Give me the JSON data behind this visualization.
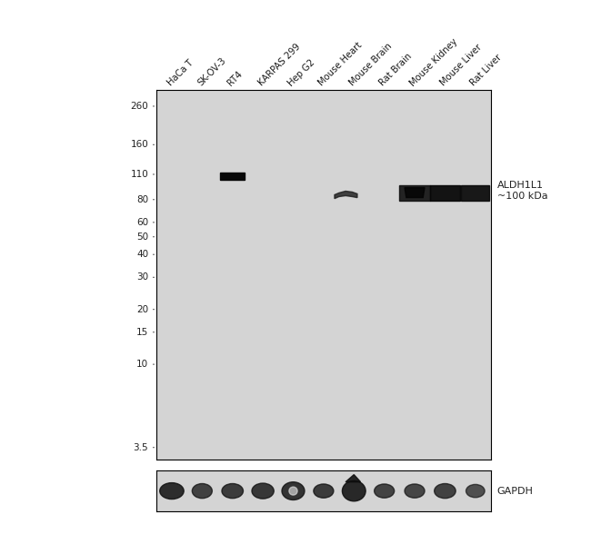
{
  "figure_bg": "#ffffff",
  "panel_bg": "#d4d4d4",
  "panel_border": "#000000",
  "ladder_labels": [
    "260",
    "160",
    "110",
    "80",
    "60",
    "50",
    "40",
    "30",
    "20",
    "15",
    "10",
    "3.5"
  ],
  "ladder_values": [
    260,
    160,
    110,
    80,
    60,
    50,
    40,
    30,
    20,
    15,
    10,
    3.5
  ],
  "ymin": 3.0,
  "ymax": 320,
  "lane_labels": [
    "HaCa T",
    "SK-OV-3",
    "RT4",
    "KARPAS 299",
    "Hep G2",
    "Mouse Heart",
    "Mouse Brain",
    "Rat Brain",
    "Mouse Kidney",
    "Mouse Liver",
    "Rat Liver"
  ],
  "n_lanes": 11,
  "annotation_label1": "ALDH1L1",
  "annotation_label2": "~100 kDa",
  "gapdh_label": "GAPDH",
  "band_color": "#0a0a0a"
}
